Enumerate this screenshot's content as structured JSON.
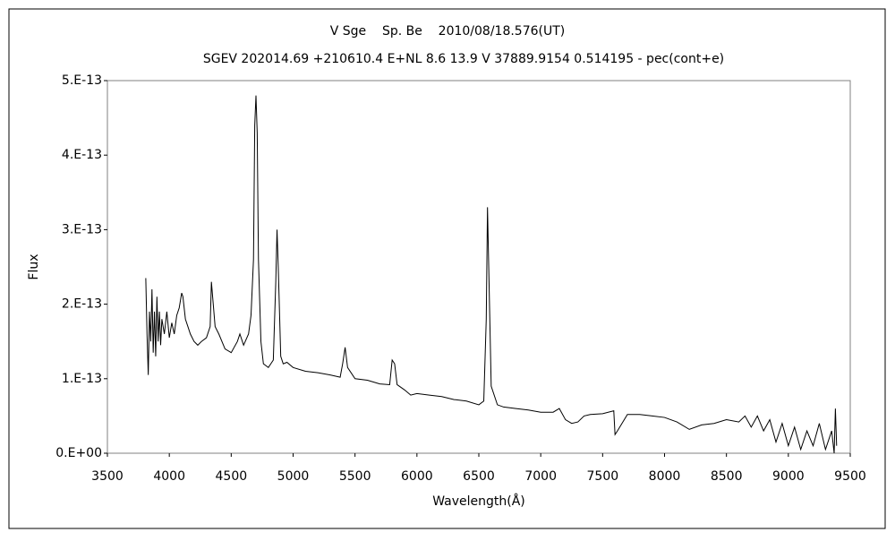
{
  "chart_data": {
    "type": "line",
    "title": "V Sge    Sp. Be    2010/08/18.576(UT)",
    "subtitle": "SGEV 202014.69 +210610.4 E+NL 8.6 13.9 V 37889.9154 0.514195 - pec(cont+e)",
    "x_label": "Wavelength(Å)",
    "y_label": "Flux",
    "xlim": [
      3500,
      9500
    ],
    "xticks": [
      3500,
      4000,
      4500,
      5000,
      5500,
      6000,
      6500,
      7000,
      7500,
      8000,
      8500,
      9000,
      9500
    ],
    "ylim": [
      0,
      5e-13
    ],
    "yticks": [
      {
        "value": 0,
        "label": "0.E+00"
      },
      {
        "value": 1e-13,
        "label": "1.E-13"
      },
      {
        "value": 2e-13,
        "label": "2.E-13"
      },
      {
        "value": 3e-13,
        "label": "3.E-13"
      },
      {
        "value": 4e-13,
        "label": "4.E-13"
      },
      {
        "value": 5e-13,
        "label": "5.E-13"
      }
    ],
    "grid": false,
    "series": [
      {
        "color": "#000000",
        "x": [
          3810,
          3820,
          3830,
          3840,
          3850,
          3860,
          3870,
          3880,
          3890,
          3900,
          3910,
          3920,
          3930,
          3940,
          3960,
          3980,
          4000,
          4020,
          4040,
          4060,
          4080,
          4100,
          4110,
          4130,
          4150,
          4170,
          4200,
          4230,
          4260,
          4300,
          4330,
          4340,
          4350,
          4370,
          4400,
          4450,
          4500,
          4550,
          4570,
          4600,
          4640,
          4660,
          4680,
          4690,
          4700,
          4710,
          4720,
          4740,
          4760,
          4800,
          4840,
          4860,
          4870,
          4880,
          4900,
          4920,
          4950,
          5000,
          5100,
          5200,
          5300,
          5380,
          5400,
          5420,
          5440,
          5500,
          5600,
          5700,
          5780,
          5800,
          5820,
          5840,
          5900,
          5950,
          6000,
          6100,
          6200,
          6300,
          6400,
          6500,
          6540,
          6560,
          6570,
          6580,
          6600,
          6650,
          6700,
          6800,
          6900,
          7000,
          7100,
          7150,
          7200,
          7250,
          7300,
          7350,
          7400,
          7500,
          7590,
          7600,
          7620,
          7700,
          7800,
          7900,
          8000,
          8100,
          8200,
          8300,
          8400,
          8500,
          8600,
          8650,
          8700,
          8750,
          8800,
          8850,
          8900,
          8950,
          9000,
          9050,
          9100,
          9150,
          9200,
          9250,
          9300,
          9350,
          9370,
          9380,
          9390
        ],
        "values": [
          2.35e-13,
          1.6e-13,
          1.05e-13,
          1.9e-13,
          1.5e-13,
          2.2e-13,
          1.35e-13,
          1.9e-13,
          1.3e-13,
          2.1e-13,
          1.5e-13,
          1.9e-13,
          1.45e-13,
          1.8e-13,
          1.6e-13,
          1.9e-13,
          1.55e-13,
          1.75e-13,
          1.6e-13,
          1.85e-13,
          1.95e-13,
          2.15e-13,
          2.1e-13,
          1.8e-13,
          1.7e-13,
          1.6e-13,
          1.5e-13,
          1.45e-13,
          1.5e-13,
          1.55e-13,
          1.7e-13,
          2.3e-13,
          2.1e-13,
          1.7e-13,
          1.6e-13,
          1.4e-13,
          1.35e-13,
          1.5e-13,
          1.6e-13,
          1.45e-13,
          1.6e-13,
          1.85e-13,
          2.6e-13,
          4.4e-13,
          4.8e-13,
          4.3e-13,
          2.6e-13,
          1.5e-13,
          1.2e-13,
          1.15e-13,
          1.25e-13,
          2.3e-13,
          3e-13,
          2.5e-13,
          1.3e-13,
          1.2e-13,
          1.22e-13,
          1.15e-13,
          1.1e-13,
          1.08e-13,
          1.05e-13,
          1.02e-13,
          1.2e-13,
          1.42e-13,
          1.15e-13,
          1e-13,
          9.8e-14,
          9.3e-14,
          9.2e-14,
          1.25e-13,
          1.2e-13,
          9.2e-14,
          8.5e-14,
          7.8e-14,
          8e-14,
          7.8e-14,
          7.6e-14,
          7.2e-14,
          7e-14,
          6.5e-14,
          7e-14,
          1.8e-13,
          3.3e-13,
          2.5e-13,
          9e-14,
          6.5e-14,
          6.2e-14,
          6e-14,
          5.8e-14,
          5.5e-14,
          5.5e-14,
          6e-14,
          4.5e-14,
          4e-14,
          4.2e-14,
          5e-14,
          5.2e-14,
          5.3e-14,
          5.7e-14,
          2.5e-14,
          3e-14,
          5.2e-14,
          5.2e-14,
          5e-14,
          4.8e-14,
          4.2e-14,
          3.2e-14,
          3.8e-14,
          4e-14,
          4.5e-14,
          4.2e-14,
          5e-14,
          3.5e-14,
          5e-14,
          3e-14,
          4.5e-14,
          1.5e-14,
          4e-14,
          1e-14,
          3.5e-14,
          5e-15,
          3e-14,
          1e-14,
          4e-14,
          5e-15,
          3e-14,
          0,
          6e-14,
          1e-14
        ]
      }
    ]
  }
}
